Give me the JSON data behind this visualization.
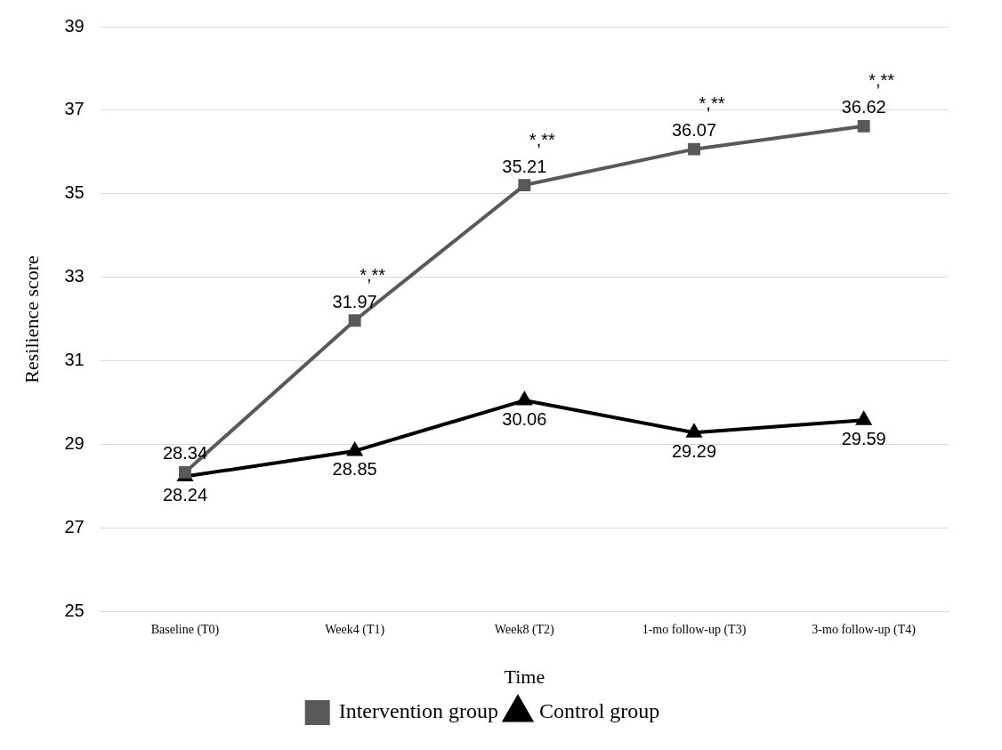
{
  "chart_data": {
    "type": "line",
    "xlabel": "Time",
    "ylabel": "Resilience score",
    "categories": [
      "Baseline (T0)",
      "Week4 (T1)",
      "Week8 (T2)",
      "1-mo follow-up (T3)",
      "3-mo follow-up (T4)"
    ],
    "series": [
      {
        "name": "Intervention group",
        "color": "#595959",
        "marker": "square",
        "values": [
          28.34,
          31.97,
          35.21,
          36.07,
          36.62
        ]
      },
      {
        "name": "Control group",
        "color": "#000000",
        "marker": "triangle",
        "values": [
          28.24,
          28.85,
          30.06,
          29.29,
          29.59
        ]
      }
    ],
    "ylim": [
      25,
      39
    ],
    "yticks": [
      25,
      27,
      29,
      31,
      33,
      35,
      37,
      39
    ],
    "grid": "y",
    "legend": "bottom",
    "data_labels": true,
    "line_style": "solid",
    "annotations": [
      {
        "text": "*,**",
        "x": "Week4 (T1)",
        "y": 31.97
      },
      {
        "text": "*,**",
        "x": "Week8 (T2)",
        "y": 35.21
      },
      {
        "text": "*,**",
        "x": "1-mo follow-up (T3)",
        "y": 36.07
      },
      {
        "text": "*,**",
        "x": "3-mo follow-up (T4)",
        "y": 36.62
      }
    ]
  }
}
